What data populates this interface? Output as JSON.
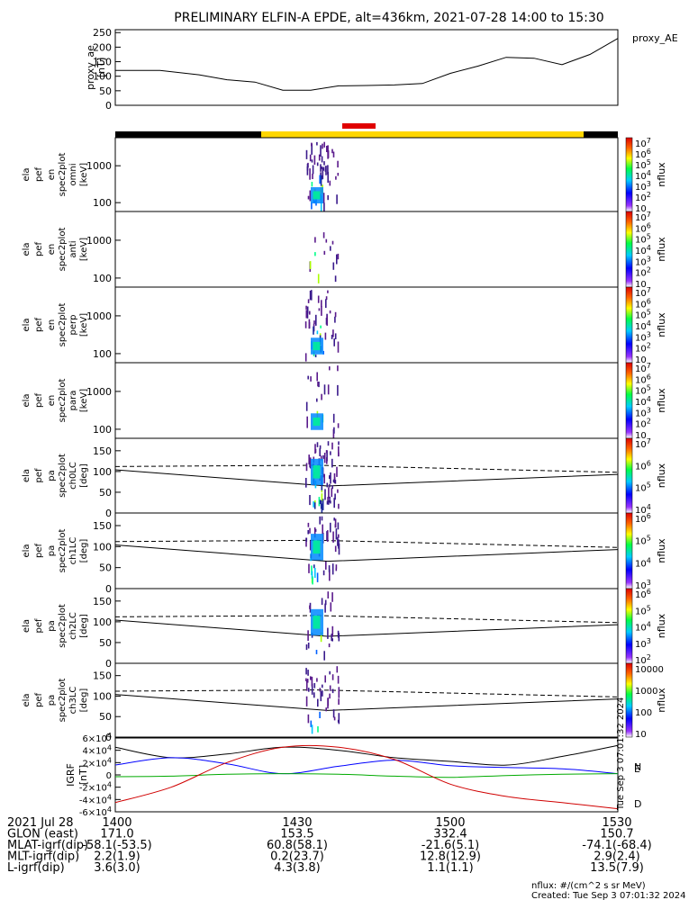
{
  "title": "PRELIMINARY ELFIN-A EPDE, alt=436km, 2021-07-28 14:00 to 15:30",
  "colors": {
    "sun": "#ffd700",
    "shadow": "#000000",
    "conjunction": "#e00000",
    "bx": "#000000",
    "by": "#0000ff",
    "bz": "#00aa00",
    "bt": "#d00000"
  },
  "chart_data": [
    {
      "type": "line",
      "name_label": "proxy_ae",
      "ylabel": [
        "proxy_ae",
        "[nT]"
      ],
      "yticks": [
        "250",
        "200",
        "150",
        "100",
        "50",
        "0"
      ],
      "ylim": [
        0,
        260
      ],
      "x": [
        0,
        8,
        15,
        20,
        25,
        30,
        35,
        40,
        45,
        50,
        55,
        60,
        65,
        70,
        75,
        80,
        85,
        90
      ],
      "series": [
        {
          "name": "proxy_AE",
          "values": [
            120,
            120,
            105,
            88,
            80,
            52,
            52,
            67,
            68,
            70,
            75,
            110,
            135,
            165,
            162,
            140,
            175,
            230
          ]
        }
      ]
    },
    {
      "type": "heatmap",
      "ylabel": [
        "ela",
        "pef",
        "en",
        "spec2plot",
        "omni",
        "[keV]"
      ],
      "yticks": [
        "1000",
        "100"
      ],
      "cbar_label": "nflux",
      "cbar_ticks": [
        "10^7",
        "10^6",
        "10^5",
        "10^4",
        "10^3",
        "10^2",
        "10"
      ]
    },
    {
      "type": "heatmap",
      "ylabel": [
        "ela",
        "pef",
        "en",
        "spec2plot",
        "anti",
        "[keV]"
      ],
      "yticks": [
        "1000",
        "100"
      ],
      "cbar_label": "nflux",
      "cbar_ticks": [
        "10^7",
        "10^6",
        "10^5",
        "10^4",
        "10^3",
        "10^2",
        "10"
      ]
    },
    {
      "type": "heatmap",
      "ylabel": [
        "ela",
        "pef",
        "en",
        "spec2plot",
        "perp",
        "[keV]"
      ],
      "yticks": [
        "1000",
        "100"
      ],
      "cbar_label": "nflux",
      "cbar_ticks": [
        "10^7",
        "10^6",
        "10^5",
        "10^4",
        "10^3",
        "10^2",
        "10"
      ]
    },
    {
      "type": "heatmap",
      "ylabel": [
        "ela",
        "pef",
        "en",
        "spec2plot",
        "para",
        "[keV]"
      ],
      "yticks": [
        "1000",
        "100"
      ],
      "cbar_label": "nflux",
      "cbar_ticks": [
        "10^7",
        "10^6",
        "10^5",
        "10^4",
        "10^3",
        "10^2",
        "10"
      ]
    },
    {
      "type": "heatmap",
      "ylabel": [
        "ela",
        "pef",
        "pa",
        "spec2plot",
        "ch0LC",
        "[deg]"
      ],
      "yticks": [
        "150",
        "100",
        "50",
        "0"
      ],
      "cbar_label": "nflux",
      "cbar_ticks": [
        "10^7",
        "10^6",
        "10^5",
        "10^4"
      ]
    },
    {
      "type": "heatmap",
      "ylabel": [
        "ela",
        "pef",
        "pa",
        "spec2plot",
        "ch1LC",
        "[deg]"
      ],
      "yticks": [
        "150",
        "100",
        "50",
        "0"
      ],
      "cbar_label": "nflux",
      "cbar_ticks": [
        "10^6",
        "10^5",
        "10^4",
        "10^3"
      ]
    },
    {
      "type": "heatmap",
      "ylabel": [
        "ela",
        "pef",
        "pa",
        "spec2plot",
        "ch2LC",
        "[deg]"
      ],
      "yticks": [
        "150",
        "100",
        "50",
        "0"
      ],
      "cbar_label": "nflux",
      "cbar_ticks": [
        "10^6",
        "10^5",
        "10^4",
        "10^3",
        "10^2"
      ]
    },
    {
      "type": "heatmap",
      "ylabel": [
        "ela",
        "pef",
        "pa",
        "spec2plot",
        "ch3LC",
        "[deg]"
      ],
      "yticks": [
        "150",
        "100",
        "50",
        "0"
      ],
      "cbar_label": "nflux",
      "cbar_ticks": [
        "10000",
        "1000",
        "100",
        "10"
      ]
    },
    {
      "type": "line",
      "ylabel": [
        "IGRF",
        "[nT]"
      ],
      "yticks": [
        "6×10^4",
        "4×10^4",
        "2×10^4",
        "0",
        "-2×10^4",
        "-4×10^4",
        "-6×10^4"
      ],
      "ylim": [
        -60000,
        60000
      ],
      "legend": [
        "N",
        "E",
        "D"
      ],
      "x": [
        0,
        10,
        20,
        30,
        40,
        50,
        60,
        70,
        80,
        90
      ],
      "series": [
        {
          "values": [
            45000,
            28000,
            34000,
            45000,
            40000,
            28000,
            22000,
            16000,
            30000,
            48000
          ]
        },
        {
          "values": [
            16000,
            28000,
            18000,
            2000,
            14000,
            24000,
            15000,
            12000,
            10000,
            2000
          ]
        },
        {
          "values": [
            -3000,
            -2000,
            1000,
            2000,
            1000,
            -2000,
            -4000,
            -1000,
            1000,
            2000
          ]
        },
        {
          "values": [
            -45000,
            -20000,
            20000,
            45000,
            45000,
            25000,
            -15000,
            -35000,
            -45000,
            -55000
          ]
        }
      ]
    }
  ],
  "stamp": "Tue Sep 3 07:01:32 2024",
  "footer": {
    "rows": [
      {
        "label": "2021 Jul 28",
        "vals": [
          "1400",
          "1430",
          "1500",
          "1530"
        ]
      },
      {
        "label": "GLON (east)",
        "vals": [
          "171.0",
          "153.5",
          "332.4",
          "150.7"
        ]
      },
      {
        "label": "MLAT-igrf(dip)",
        "vals": [
          "-58.1(-53.5)",
          "60.8(58.1)",
          "-21.6(5.1)",
          "-74.1(-68.4)"
        ]
      },
      {
        "label": "MLT-igrf(dip)",
        "vals": [
          "2.2(1.9)",
          "0.2(23.7)",
          "12.8(12.9)",
          "2.9(2.4)"
        ]
      },
      {
        "label": "L-igrf(dip)",
        "vals": [
          "3.6(3.0)",
          "4.3(3.8)",
          "1.1(1.1)",
          "13.5(7.9)"
        ]
      }
    ],
    "units_note": "nflux: #/(cm^2 s sr MeV)",
    "created": "Created: Tue Sep  3 07:01:32 2024"
  }
}
